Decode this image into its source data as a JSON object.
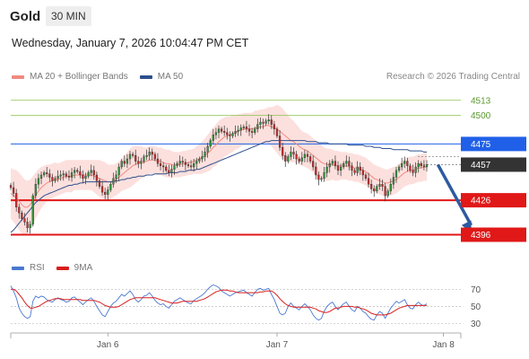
{
  "header": {
    "instrument": "Gold",
    "timeframe": "30 MIN",
    "datetime": "Wednesday, January 7, 2026 10:04:47 PM CET",
    "credit": "Research © 2026 Trading Central"
  },
  "legend_main": [
    {
      "label": "MA 20 + Bollinger Bands",
      "color": "#f08a80"
    },
    {
      "label": "MA 50",
      "color": "#2f4f8f"
    }
  ],
  "legend_rsi": [
    {
      "label": "RSI",
      "color": "#4a78d0"
    },
    {
      "label": "9MA",
      "color": "#d81e1e"
    }
  ],
  "chart_data": {
    "type": "candlestick",
    "price_axis": {
      "min": 4380,
      "max": 4530
    },
    "x_ticks": [
      {
        "label": "Jan 6",
        "index": 35
      },
      {
        "label": "Jan 7",
        "index": 96
      },
      {
        "label": "Jan 8",
        "index": 156
      }
    ],
    "levels": [
      {
        "value": 4513,
        "label": "4513",
        "style": "resistance-thin",
        "color": "#8dc24e"
      },
      {
        "value": 4500,
        "label": "4500",
        "style": "resistance-thin",
        "color": "#8dc24e"
      },
      {
        "value": 4475,
        "label": "4475",
        "style": "box",
        "color": "#2060e8"
      },
      {
        "value": 4457,
        "label": "4457",
        "style": "last-price",
        "color": "#333333"
      },
      {
        "value": 4426,
        "label": "4426",
        "style": "box",
        "color": "#e01818"
      },
      {
        "value": 4396,
        "label": "4396",
        "style": "box",
        "color": "#e01818"
      }
    ],
    "forecast_arrow": {
      "from_index": 154,
      "from_price": 4457,
      "to_index": 166,
      "to_price": 4398,
      "color": "#2d5aa0"
    },
    "close_path": [
      4437,
      4432,
      4420,
      4415,
      4410,
      4407,
      4402,
      4405,
      4430,
      4440,
      4445,
      4448,
      4450,
      4449,
      4446,
      4443,
      4445,
      4447,
      4448,
      4449,
      4447,
      4446,
      4450,
      4452,
      4451,
      4448,
      4445,
      4447,
      4450,
      4452,
      4448,
      4443,
      4438,
      4433,
      4431,
      4435,
      4440,
      4445,
      4448,
      4455,
      4460,
      4458,
      4462,
      4466,
      4465,
      4460,
      4458,
      4460,
      4464,
      4465,
      4468,
      4466,
      4462,
      4458,
      4456,
      4455,
      4452,
      4450,
      4453,
      4456,
      4458,
      4460,
      4459,
      4457,
      4456,
      4455,
      4458,
      4460,
      4462,
      4464,
      4468,
      4473,
      4478,
      4483,
      4485,
      4488,
      4486,
      4485,
      4483,
      4482,
      4484,
      4486,
      4487,
      4489,
      4490,
      4488,
      4486,
      4485,
      4488,
      4492,
      4494,
      4493,
      4495,
      4496,
      4492,
      4488,
      4482,
      4472,
      4465,
      4460,
      4464,
      4468,
      4466,
      4462,
      4460,
      4463,
      4466,
      4464,
      4460,
      4455,
      4448,
      4444,
      4445,
      4450,
      4455,
      4458,
      4460,
      4456,
      4452,
      4455,
      4458,
      4460,
      4456,
      4452,
      4450,
      4455,
      4452,
      4448,
      4445,
      4440,
      4436,
      4434,
      4438,
      4440,
      4438,
      4430,
      4434,
      4440,
      4446,
      4452,
      4455,
      4458,
      4460,
      4456,
      4452,
      4450,
      4455,
      4458,
      4456,
      4455,
      4457
    ],
    "ma20": [
      4432,
      4430,
      4428,
      4425,
      4422,
      4420,
      4420,
      4422,
      4426,
      4430,
      4434,
      4437,
      4439,
      4441,
      4442,
      4443,
      4444,
      4444,
      4445,
      4446,
      4447,
      4447,
      4447,
      4448,
      4448,
      4448,
      4448,
      4448,
      4448,
      4448,
      4447,
      4446,
      4445,
      4444,
      4443,
      4442,
      4442,
      4443,
      4444,
      4446,
      4448,
      4450,
      4452,
      4454,
      4456,
      4457,
      4458,
      4459,
      4459,
      4460,
      4461,
      4461,
      4461,
      4460,
      4460,
      4459,
      4458,
      4458,
      4457,
      4457,
      4457,
      4457,
      4458,
      4458,
      4459,
      4459,
      4460,
      4461,
      4462,
      4463,
      4465,
      4467,
      4469,
      4472,
      4474,
      4477,
      4479,
      4481,
      4482,
      4483,
      4484,
      4485,
      4486,
      4487,
      4488,
      4488,
      4488,
      4488,
      4489,
      4489,
      4490,
      4490,
      4491,
      4491,
      4490,
      4489,
      4488,
      4486,
      4484,
      4482,
      4480,
      4478,
      4477,
      4475,
      4473,
      4471,
      4470,
      4469,
      4467,
      4465,
      4463,
      4461,
      4459,
      4458,
      4457,
      4457,
      4457,
      4456,
      4456,
      4456,
      4456,
      4456,
      4455,
      4455,
      4454,
      4454,
      4453,
      4452,
      4451,
      4449,
      4447,
      4445,
      4444,
      4443,
      4442,
      4441,
      4441,
      4442,
      4443,
      4444,
      4446,
      4448,
      4450,
      4451,
      4452,
      4452,
      4453,
      4454,
      4454,
      4455,
      4455
    ],
    "ma50": [
      4398,
      4400,
      4403,
      4406,
      4409,
      4412,
      4415,
      4418,
      4421,
      4424,
      4426,
      4428,
      4430,
      4431,
      4432,
      4433,
      4434,
      4435,
      4436,
      4437,
      4438,
      4439,
      4439,
      4440,
      4440,
      4441,
      4441,
      4442,
      4442,
      4442,
      4442,
      4442,
      4442,
      4442,
      4442,
      4442,
      4442,
      4442,
      4443,
      4443,
      4444,
      4444,
      4445,
      4445,
      4446,
      4446,
      4447,
      4447,
      4447,
      4448,
      4448,
      4448,
      4449,
      4449,
      4449,
      4449,
      4449,
      4450,
      4450,
      4450,
      4450,
      4451,
      4451,
      4451,
      4452,
      4452,
      4452,
      4453,
      4453,
      4454,
      4455,
      4456,
      4457,
      4458,
      4459,
      4460,
      4461,
      4462,
      4463,
      4464,
      4465,
      4466,
      4467,
      4468,
      4469,
      4470,
      4471,
      4472,
      4473,
      4474,
      4475,
      4476,
      4477,
      4477,
      4478,
      4478,
      4478,
      4478,
      4478,
      4478,
      4478,
      4478,
      4478,
      4478,
      4478,
      4478,
      4478,
      4477,
      4477,
      4477,
      4477,
      4476,
      4476,
      4476,
      4476,
      4475,
      4475,
      4475,
      4475,
      4475,
      4475,
      4475,
      4474,
      4474,
      4474,
      4474,
      4474,
      4474,
      4473,
      4473,
      4473,
      4472,
      4472,
      4472,
      4471,
      4471,
      4471,
      4471,
      4470,
      4470,
      4470,
      4470,
      4470,
      4470,
      4469,
      4469,
      4469,
      4469,
      4469,
      4468,
      4468
    ],
    "band_width": [
      22,
      23,
      24,
      25,
      25,
      24,
      23,
      22,
      21,
      20,
      19,
      18,
      17,
      16,
      15,
      15,
      15,
      14,
      14,
      14,
      14,
      14,
      14,
      13,
      13,
      13,
      13,
      13,
      13,
      13,
      14,
      15,
      16,
      16,
      16,
      15,
      15,
      14,
      14,
      14,
      14,
      15,
      16,
      17,
      17,
      16,
      15,
      14,
      13,
      12,
      12,
      12,
      12,
      12,
      12,
      12,
      12,
      12,
      12,
      11,
      11,
      11,
      11,
      11,
      11,
      11,
      11,
      12,
      13,
      14,
      15,
      16,
      17,
      17,
      18,
      18,
      18,
      17,
      17,
      16,
      16,
      15,
      15,
      14,
      14,
      14,
      14,
      14,
      15,
      15,
      15,
      15,
      15,
      16,
      17,
      19,
      21,
      22,
      22,
      21,
      20,
      19,
      18,
      17,
      16,
      15,
      15,
      15,
      15,
      15,
      15,
      15,
      15,
      14,
      14,
      14,
      13,
      13,
      13,
      12,
      12,
      12,
      12,
      12,
      12,
      12,
      12,
      12,
      12,
      12,
      12,
      12,
      12,
      12,
      12,
      12,
      12,
      12,
      12,
      12,
      12,
      12,
      12,
      12,
      12,
      12,
      12,
      12,
      12,
      12,
      12
    ],
    "rsi_axis": {
      "min": 20,
      "max": 85,
      "ticks": [
        70,
        50,
        30
      ]
    },
    "rsi_values": [
      74,
      68,
      60,
      48,
      42,
      38,
      36,
      38,
      56,
      62,
      60,
      62,
      61,
      58,
      56,
      55,
      58,
      60,
      58,
      57,
      55,
      56,
      60,
      61,
      58,
      55,
      52,
      55,
      58,
      60,
      56,
      50,
      45,
      40,
      38,
      44,
      50,
      54,
      56,
      60,
      64,
      62,
      65,
      68,
      64,
      58,
      55,
      58,
      62,
      63,
      66,
      62,
      57,
      54,
      52,
      53,
      50,
      48,
      52,
      56,
      58,
      60,
      58,
      56,
      54,
      53,
      57,
      59,
      61,
      63,
      66,
      70,
      73,
      75,
      74,
      72,
      68,
      66,
      64,
      62,
      64,
      66,
      67,
      68,
      69,
      66,
      64,
      62,
      66,
      70,
      71,
      69,
      70,
      71,
      64,
      58,
      50,
      42,
      40,
      42,
      50,
      54,
      50,
      48,
      46,
      50,
      53,
      50,
      46,
      40,
      36,
      34,
      36,
      44,
      50,
      53,
      55,
      50,
      46,
      50,
      53,
      55,
      50,
      46,
      44,
      50,
      48,
      44,
      42,
      38,
      35,
      34,
      40,
      44,
      42,
      36,
      42,
      48,
      52,
      56,
      54,
      56,
      58,
      52,
      48,
      47,
      52,
      55,
      52,
      51,
      53
    ],
    "rsi_ma": [
      70,
      70,
      68,
      64,
      60,
      55,
      51,
      48,
      48,
      49,
      50,
      52,
      54,
      56,
      57,
      58,
      59,
      59,
      59,
      58,
      58,
      58,
      58,
      58,
      58,
      58,
      57,
      57,
      57,
      57,
      57,
      56,
      55,
      53,
      51,
      50,
      49,
      49,
      49,
      50,
      52,
      54,
      56,
      58,
      59,
      60,
      60,
      60,
      60,
      60,
      60,
      60,
      60,
      59,
      58,
      57,
      56,
      55,
      54,
      54,
      54,
      55,
      56,
      56,
      56,
      56,
      56,
      56,
      57,
      58,
      59,
      61,
      63,
      65,
      67,
      68,
      69,
      69,
      69,
      68,
      68,
      67,
      66,
      66,
      66,
      66,
      66,
      66,
      66,
      66,
      67,
      67,
      68,
      68,
      68,
      66,
      63,
      59,
      56,
      53,
      51,
      50,
      49,
      49,
      49,
      49,
      49,
      49,
      49,
      48,
      47,
      45,
      44,
      43,
      43,
      44,
      46,
      48,
      48,
      49,
      50,
      50,
      50,
      50,
      49,
      49,
      48,
      47,
      46,
      44,
      42,
      41,
      40,
      40,
      40,
      40,
      41,
      42,
      44,
      46,
      48,
      49,
      50,
      51,
      51,
      51,
      51,
      51,
      51,
      51,
      51
    ]
  }
}
